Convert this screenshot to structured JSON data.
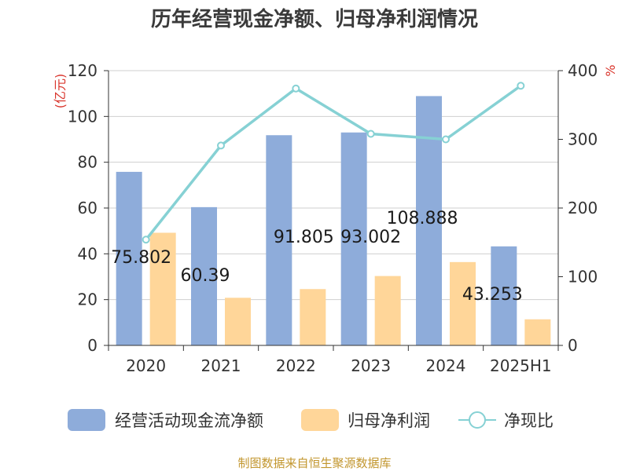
{
  "chart_data": {
    "type": "bar",
    "title": "历年经营现金净额、归母净利润情况",
    "categories": [
      "2020",
      "2021",
      "2022",
      "2023",
      "2024",
      "2025H1"
    ],
    "series": [
      {
        "name": "经营活动现金流净额",
        "kind": "bar",
        "axis": "left",
        "color": "#8eacda",
        "values": [
          75.802,
          60.39,
          91.805,
          93.002,
          108.888,
          43.253
        ],
        "labels": [
          "75.802",
          "60.39",
          "91.805",
          "93.002",
          "108.888",
          "43.253"
        ]
      },
      {
        "name": "归母净利润",
        "kind": "bar",
        "axis": "left",
        "color": "#ffd699",
        "values": [
          49.2,
          20.8,
          24.6,
          30.3,
          36.4,
          11.4
        ]
      },
      {
        "name": "净现比",
        "kind": "line",
        "axis": "right",
        "color": "#86d1d4",
        "values": [
          154,
          291,
          374,
          308,
          300,
          378
        ]
      }
    ],
    "y_left": {
      "label": "(亿元)",
      "min": 0,
      "max": 120,
      "ticks": [
        0,
        20,
        40,
        60,
        80,
        100,
        120
      ]
    },
    "y_right": {
      "label": "%",
      "min": 0,
      "max": 400,
      "ticks": [
        0,
        100,
        200,
        300,
        400
      ]
    },
    "grid": true,
    "legend_position": "bottom"
  },
  "source": "制图数据来自恒生聚源数据库"
}
